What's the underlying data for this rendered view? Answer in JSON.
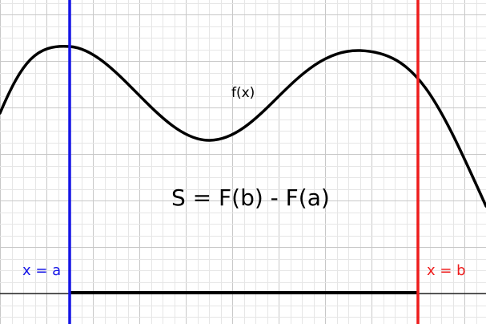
{
  "labels": {
    "curve": "f(x)",
    "formula": "S = F(b) - F(a)",
    "left_bound": "x = a",
    "right_bound": "x = b"
  },
  "colors": {
    "left_bound": "#1515e6",
    "right_bound": "#ee1c1c",
    "curve": "#000000",
    "grid_minor": "#e6e6e6",
    "grid_major": "#c8c8c8",
    "axis": "#000000"
  }
}
